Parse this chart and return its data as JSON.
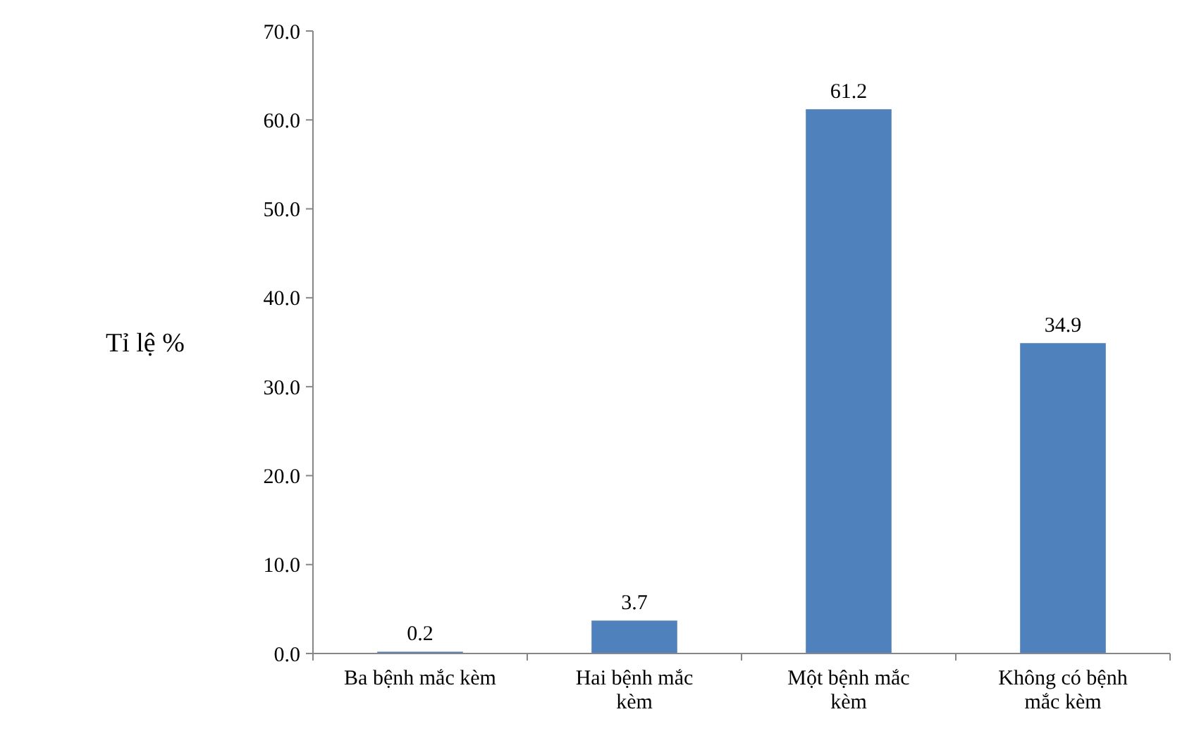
{
  "chart_data": {
    "type": "bar",
    "ylabel": "Tỉ lệ %",
    "categories": [
      "Ba bệnh mắc kèm",
      "Hai bệnh mắc kèm",
      "Một bệnh mắc kèm",
      "Không có bệnh mắc kèm"
    ],
    "values": [
      0.2,
      3.7,
      61.2,
      34.9
    ],
    "color": "#4f81bd",
    "ylim": [
      0,
      70
    ],
    "yticks": [
      {
        "value": 0,
        "label": "0.0"
      },
      {
        "value": 10,
        "label": "10.0"
      },
      {
        "value": 20,
        "label": "20.0"
      },
      {
        "value": 30,
        "label": "30.0"
      },
      {
        "value": 40,
        "label": "40.0"
      },
      {
        "value": 50,
        "label": "50.0"
      },
      {
        "value": 60,
        "label": "60.0"
      },
      {
        "value": 70,
        "label": "70.0"
      }
    ],
    "grid": false,
    "data_labels": true
  }
}
